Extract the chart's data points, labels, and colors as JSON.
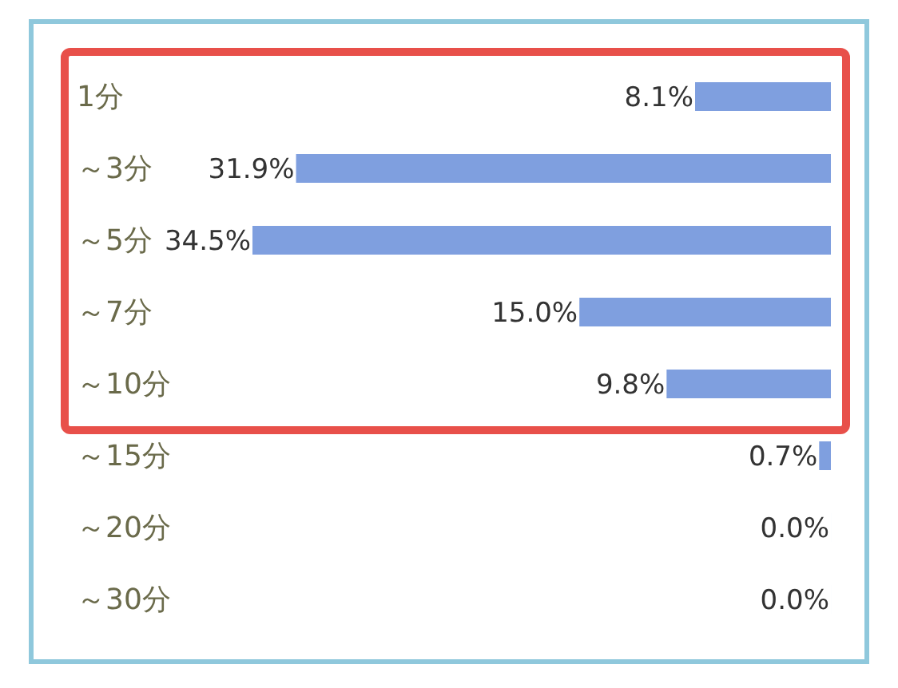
{
  "chart_data": {
    "type": "bar",
    "orientation": "horizontal",
    "data_labels": true,
    "categories": [
      "1分",
      "～3分",
      "～5分",
      "～7分",
      "～10分",
      "～15分",
      "～20分",
      "～30分"
    ],
    "values": [
      8.1,
      31.9,
      34.5,
      15.0,
      9.8,
      0.7,
      0.0,
      0.0
    ],
    "value_labels": [
      "8.1%",
      "31.9%",
      "34.5%",
      "15.0%",
      "9.8%",
      "0.7%",
      "0.0%",
      "0.0%"
    ],
    "color": "#7f9fdf"
  }
}
